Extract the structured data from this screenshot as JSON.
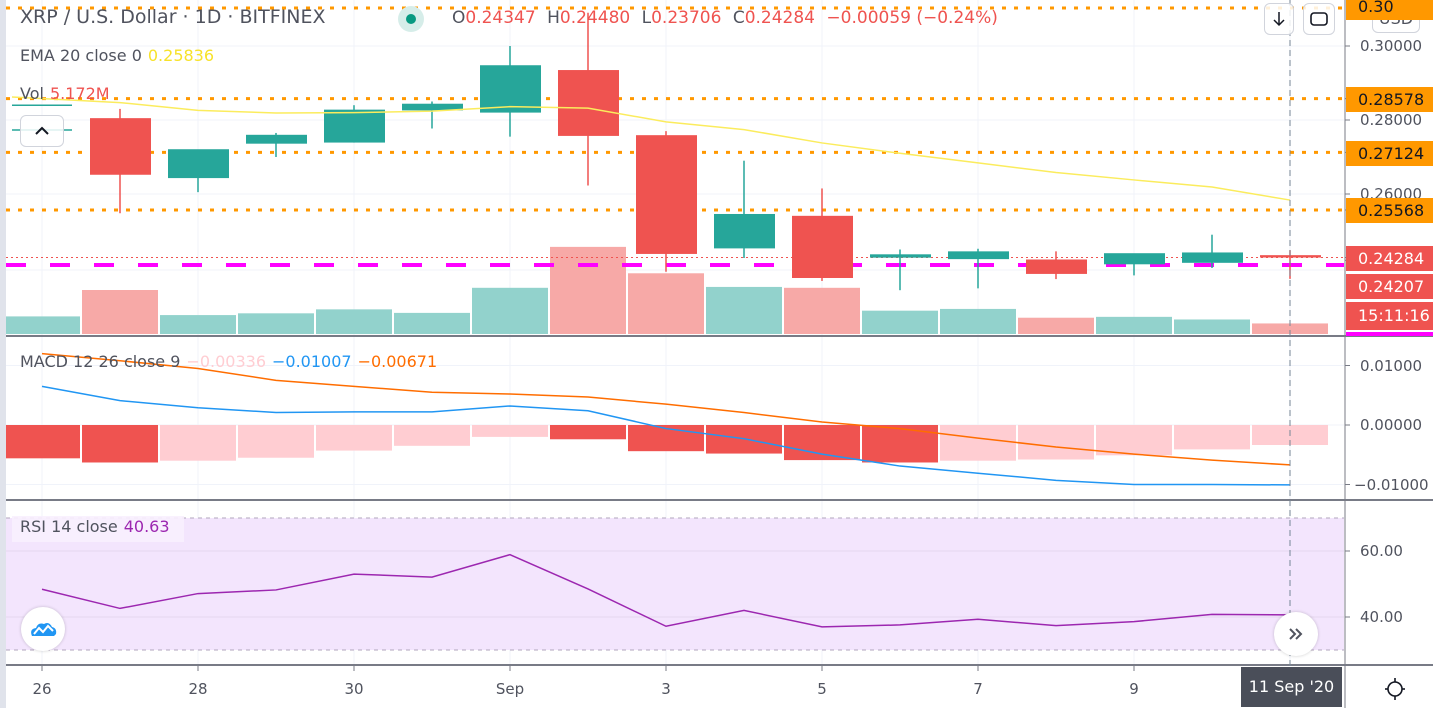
{
  "header": {
    "symbol_title": "XRP / U.S. Dollar · 1D · BITFINEX",
    "status_dot_color": "#089981",
    "ohlc": {
      "o_label": "O",
      "o_value": "0.24347",
      "h_label": "H",
      "h_value": "0.24480",
      "l_label": "L",
      "l_value": "0.23706",
      "c_label": "C",
      "c_value": "0.24284",
      "change": "−0.00059 (−0.24%)"
    }
  },
  "legends": {
    "ema": {
      "label": "EMA 20 close 0",
      "value": "0.25836"
    },
    "vol": {
      "label": "Vol",
      "value": "5.172M"
    },
    "macd": {
      "label": "MACD 12 26 close 9",
      "hist": "−0.00336",
      "macd": "−0.01007",
      "signal": "−0.00671"
    },
    "rsi": {
      "label": "RSI 14 close",
      "value": "40.63"
    }
  },
  "price_axis": {
    "currency_button": "USD",
    "ticks": [
      "0.30000",
      "0.28000",
      "0.26000"
    ],
    "tags": {
      "top_cut": "0.30",
      "level1": "0.28578",
      "level2": "0.27124",
      "level3": "0.25568",
      "last_price": "0.24284",
      "prev_price": "0.24207",
      "countdown": "15:11:16"
    }
  },
  "macd_axis": {
    "ticks": [
      "0.01000",
      "0.00000",
      "−0.01000"
    ]
  },
  "rsi_axis": {
    "ticks": [
      "60.00",
      "40.00"
    ]
  },
  "time_axis": {
    "ticks": [
      "26",
      "28",
      "30",
      "Sep",
      "3",
      "5",
      "7",
      "9"
    ],
    "crosshair_date": "11 Sep '20"
  },
  "colors": {
    "up": "#26a69a",
    "down": "#ef5350",
    "up_volume": "#92d2cc",
    "down_volume": "#f7a9a7",
    "ema": "#fbec5d",
    "level_line": "#ff9800",
    "macd_line": "#2196f3",
    "signal_line": "#ff6d00",
    "rsi_line": "#9c27b0",
    "rsi_band": "#f3e5fd",
    "magenta_line": "#ff00ff"
  },
  "chart_data": [
    {
      "type": "candlestick",
      "title": "XRP / U.S. Dollar · 1D · BITFINEX",
      "categories": [
        "Aug 26",
        "Aug 27",
        "Aug 28",
        "Aug 29",
        "Aug 30",
        "Aug 31",
        "Sep 1",
        "Sep 2",
        "Sep 3",
        "Sep 4",
        "Sep 5",
        "Sep 6",
        "Sep 7",
        "Sep 8",
        "Sep 9",
        "Sep 10",
        "Sep 11"
      ],
      "open": [
        0.284,
        0.2805,
        0.2643,
        0.2736,
        0.2739,
        0.2826,
        0.282,
        0.2935,
        0.2759,
        0.2453,
        0.2541,
        0.2428,
        0.2424,
        0.2423,
        0.241,
        0.2414,
        0.24347
      ],
      "high": [
        0.284,
        0.283,
        0.272,
        0.2765,
        0.284,
        0.285,
        0.3,
        0.309,
        0.277,
        0.269,
        0.2615,
        0.245,
        0.2452,
        0.2445,
        0.2425,
        0.249,
        0.2448
      ],
      "low": [
        0.284,
        0.2548,
        0.2605,
        0.27,
        0.2739,
        0.2777,
        0.2755,
        0.2623,
        0.239,
        0.2427,
        0.2365,
        0.234,
        0.2345,
        0.237,
        0.238,
        0.24,
        0.23706
      ],
      "close": [
        0.284,
        0.2652,
        0.2721,
        0.276,
        0.2828,
        0.2844,
        0.2948,
        0.2757,
        0.2438,
        0.2546,
        0.2373,
        0.2437,
        0.2445,
        0.2384,
        0.244,
        0.2442,
        0.24284
      ],
      "ema20": [
        0.2862,
        0.2847,
        0.2826,
        0.2819,
        0.282,
        0.2824,
        0.2836,
        0.2832,
        0.2795,
        0.2774,
        0.2738,
        0.271,
        0.2684,
        0.2658,
        0.2638,
        0.2619,
        0.25836
      ],
      "volume_relative": [
        0.4,
        1.0,
        0.43,
        0.47,
        0.56,
        0.48,
        1.05,
        1.98,
        1.38,
        1.07,
        1.05,
        0.53,
        0.57,
        0.37,
        0.39,
        0.33,
        0.24
      ],
      "volume_last": "5.172M",
      "horizontal_levels": [
        0.28578,
        0.27124,
        0.25568
      ],
      "last_price": 0.24284,
      "ylim": [
        0.232,
        0.312
      ],
      "yticks": [
        0.26,
        0.28,
        0.3
      ]
    },
    {
      "type": "line+bar",
      "title": "MACD 12 26 close 9",
      "categories": [
        "Aug 26",
        "Aug 27",
        "Aug 28",
        "Aug 29",
        "Aug 30",
        "Aug 31",
        "Sep 1",
        "Sep 2",
        "Sep 3",
        "Sep 4",
        "Sep 5",
        "Sep 6",
        "Sep 7",
        "Sep 8",
        "Sep 9",
        "Sep 10",
        "Sep 11"
      ],
      "series": [
        {
          "name": "MACD",
          "values": [
            0.0065,
            0.0041,
            0.0029,
            0.0021,
            0.0022,
            0.0022,
            0.0032,
            0.0024,
            -0.0006,
            -0.0023,
            -0.0049,
            -0.0069,
            -0.0081,
            -0.0093,
            -0.01,
            -0.01,
            -0.01007
          ]
        },
        {
          "name": "Signal",
          "values": [
            0.012,
            0.0108,
            0.0095,
            0.0075,
            0.0065,
            0.0055,
            0.0052,
            0.0047,
            0.0035,
            0.0021,
            0.0005,
            -0.0006,
            -0.0022,
            -0.0037,
            -0.0049,
            -0.0059,
            -0.00671
          ]
        },
        {
          "name": "Histogram",
          "values": [
            -0.0056,
            -0.0063,
            -0.006,
            -0.0055,
            -0.0043,
            -0.0035,
            -0.002,
            -0.0024,
            -0.0044,
            -0.0048,
            -0.0059,
            -0.0063,
            -0.006,
            -0.0058,
            -0.0051,
            -0.0041,
            -0.00336
          ]
        }
      ],
      "ylim": [
        -0.0125,
        0.0125
      ],
      "yticks": [
        -0.01,
        0.0,
        0.01
      ]
    },
    {
      "type": "line",
      "title": "RSI 14 close",
      "categories": [
        "Aug 26",
        "Aug 27",
        "Aug 28",
        "Aug 29",
        "Aug 30",
        "Aug 31",
        "Sep 1",
        "Sep 2",
        "Sep 3",
        "Sep 4",
        "Sep 5",
        "Sep 6",
        "Sep 7",
        "Sep 8",
        "Sep 9",
        "Sep 10",
        "Sep 11"
      ],
      "values": [
        48.4,
        42.6,
        47.1,
        48.2,
        53.0,
        52.1,
        58.9,
        48.5,
        37.2,
        42.0,
        37.0,
        37.6,
        39.3,
        37.4,
        38.6,
        40.8,
        40.63
      ],
      "band": [
        30,
        70
      ],
      "yticks": [
        40,
        60
      ],
      "ylim": [
        25,
        75
      ]
    }
  ]
}
